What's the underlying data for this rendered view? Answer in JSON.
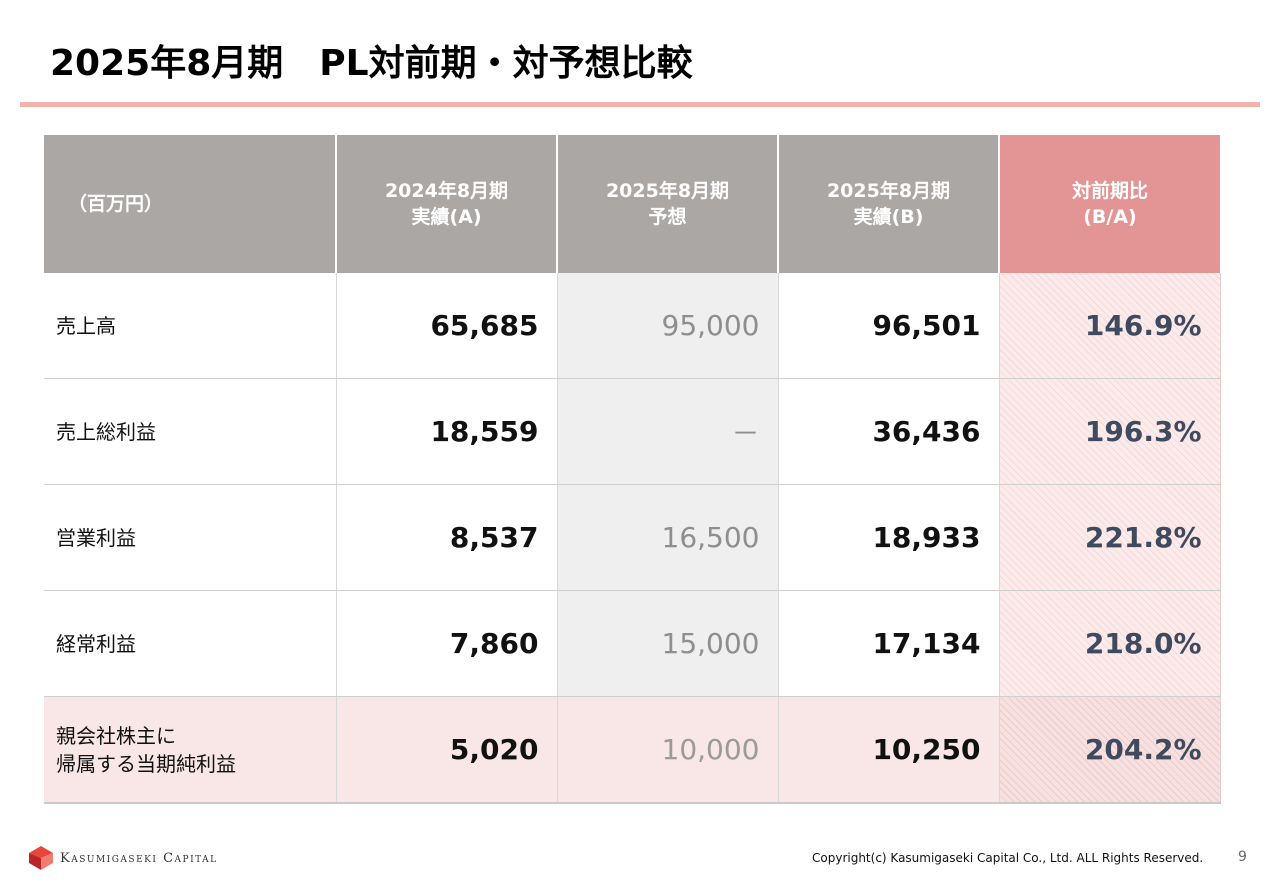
{
  "title": "2025年8月期　PL対前期・対予想比較",
  "table": {
    "headers": {
      "unit": "（百万円）",
      "col1": [
        "2024年8月期",
        "実績(A)"
      ],
      "col2": [
        "2025年8月期",
        "予想"
      ],
      "col3": [
        "2025年8月期",
        "実績(B)"
      ],
      "col4": [
        "対前期比",
        "(B/A)"
      ]
    },
    "rows": [
      {
        "label": [
          "売上高"
        ],
        "actual_2024": "65,685",
        "forecast_2025": "95,000",
        "actual_2025": "96,501",
        "ratio": "146.9%"
      },
      {
        "label": [
          "売上総利益"
        ],
        "actual_2024": "18,559",
        "forecast_2025": "－",
        "actual_2025": "36,436",
        "ratio": "196.3%"
      },
      {
        "label": [
          "営業利益"
        ],
        "actual_2024": "8,537",
        "forecast_2025": "16,500",
        "actual_2025": "18,933",
        "ratio": "221.8%"
      },
      {
        "label": [
          "経常利益"
        ],
        "actual_2024": "7,860",
        "forecast_2025": "15,000",
        "actual_2025": "17,134",
        "ratio": "218.0%"
      },
      {
        "label": [
          "親会社株主に",
          "帰属する当期純利益"
        ],
        "actual_2024": "5,020",
        "forecast_2025": "10,000",
        "actual_2025": "10,250",
        "ratio": "204.2%"
      }
    ]
  },
  "footer": {
    "logo_text": "Kasumigaseki Capital",
    "copyright": "Copyright(c) Kasumigaseki Capital Co., Ltd. ALL Rights Reserved.",
    "page_number": "9"
  },
  "colors": {
    "accent_rule": "#f2b4aa",
    "header_gray": "#aba7a5",
    "header_ratio": "#e39494",
    "ratio_text": "#3f4a5e"
  }
}
